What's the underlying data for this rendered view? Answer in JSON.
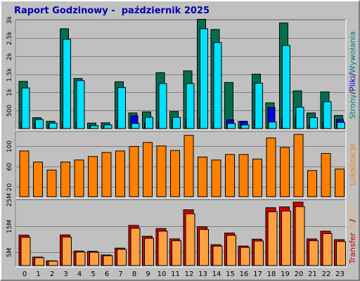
{
  "report": {
    "title": "Raport Godzinowy -  październik 2025"
  },
  "legend": {
    "hits": "Strony",
    "files": "Pliki",
    "requests": "Wywołania",
    "visits": "Lokalizacje",
    "transfer": "Transfer",
    "in": "IN",
    "out": "OUT",
    "sep": "/"
  },
  "colors": {
    "strony": "#006f4f",
    "pliki": "#0000e0",
    "wywolania": "#00e0ff",
    "lokalizacje": "#ff8000",
    "transfer": "#d00000",
    "transfer_in": "#ffa040",
    "transfer_out": "#ffb060",
    "background": "#c0c0c0",
    "title": "#0000b0",
    "grid": "#808080"
  },
  "chart_data": [
    {
      "type": "bar",
      "panel": "top",
      "categories": [
        "0",
        "1",
        "2",
        "3",
        "4",
        "5",
        "6",
        "7",
        "8",
        "9",
        "10",
        "11",
        "12",
        "13",
        "14",
        "15",
        "16",
        "17",
        "18",
        "19",
        "20",
        "21",
        "22",
        "23"
      ],
      "ylim": [
        0,
        3000
      ],
      "yticks": [
        "500",
        "1k",
        "1.5k",
        "2k",
        "2.5k",
        "3k"
      ],
      "ytick_values": [
        500,
        1000,
        1500,
        2000,
        2500,
        3000
      ],
      "series": [
        {
          "name": "Strony",
          "values": [
            1300,
            300,
            200,
            2750,
            1380,
            150,
            160,
            1290,
            430,
            460,
            1540,
            470,
            1590,
            3010,
            2730,
            1270,
            200,
            1500,
            710,
            2910,
            1040,
            430,
            1010,
            360
          ]
        },
        {
          "name": "Pliki",
          "values": [
            180,
            180,
            100,
            200,
            180,
            80,
            60,
            240,
            350,
            150,
            200,
            240,
            280,
            280,
            180,
            240,
            200,
            240,
            580,
            250,
            330,
            100,
            180,
            250
          ]
        },
        {
          "name": "Wywołania",
          "values": [
            1120,
            250,
            150,
            2460,
            1320,
            80,
            100,
            1130,
            140,
            310,
            1240,
            310,
            1240,
            2750,
            2370,
            140,
            100,
            1250,
            180,
            2290,
            590,
            300,
            740,
            170
          ]
        }
      ]
    },
    {
      "type": "bar",
      "panel": "middle",
      "categories": [
        "0",
        "1",
        "2",
        "3",
        "4",
        "5",
        "6",
        "7",
        "8",
        "9",
        "10",
        "11",
        "12",
        "13",
        "14",
        "15",
        "16",
        "17",
        "18",
        "19",
        "20",
        "21",
        "22",
        "23"
      ],
      "ylim": [
        0,
        130
      ],
      "yticks": [
        "20",
        "60",
        "100"
      ],
      "ytick_values": [
        20,
        60,
        100
      ],
      "series": [
        {
          "name": "Lokalizacje",
          "values": [
            91,
            69,
            53,
            69,
            73,
            80,
            88,
            91,
            100,
            108,
            101,
            92,
            122,
            79,
            73,
            84,
            84,
            75,
            117,
            98,
            124,
            52,
            86,
            55
          ]
        }
      ]
    },
    {
      "type": "bar",
      "panel": "bottom",
      "categories": [
        "0",
        "1",
        "2",
        "3",
        "4",
        "5",
        "6",
        "7",
        "8",
        "9",
        "10",
        "11",
        "12",
        "13",
        "14",
        "15",
        "16",
        "17",
        "18",
        "19",
        "20",
        "21",
        "22",
        "23"
      ],
      "ylim": [
        0,
        25
      ],
      "yticks": [
        "5M",
        "15M",
        "25M"
      ],
      "ytick_values": [
        5,
        15,
        25
      ],
      "series": [
        {
          "name": "Transfer",
          "values": [
            11.5,
            3.2,
            1.8,
            11.6,
            5.5,
            5.4,
            4.0,
            6.6,
            15.2,
            11.1,
            14.0,
            10.1,
            21.1,
            14.7,
            7.9,
            12.3,
            7.4,
            10.0,
            21.9,
            22.2,
            24.0,
            10.1,
            13.0,
            9.8
          ]
        }
      ]
    }
  ]
}
